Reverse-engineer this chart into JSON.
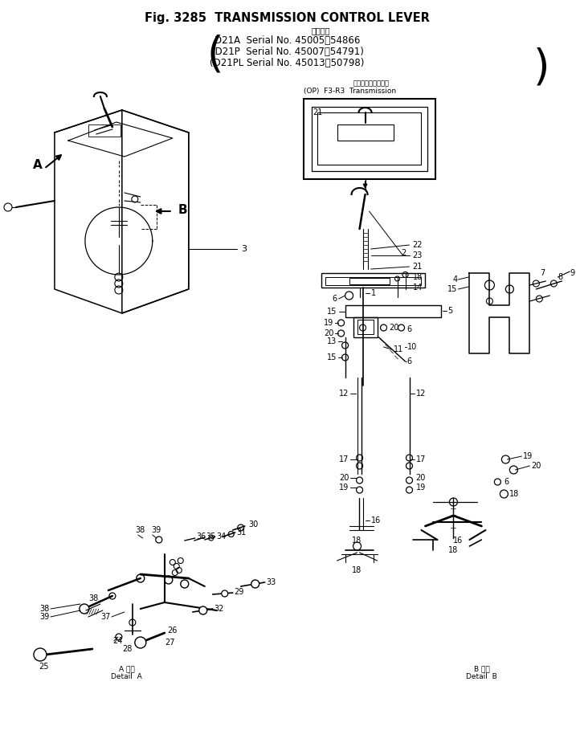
{
  "title": "Fig. 3285  TRANSMISSION CONTROL LEVER",
  "subtitle_jp": "適用号機",
  "serial1": "D21A  Serial No. 45005～54866",
  "serial2": "(D21P  Serial No. 45007～54791)",
  "serial3": "(D21PL Serial No. 45013～50798)",
  "op_label": "(OP)  F3-R3  Transmission",
  "op_jp": "トランスミッション",
  "detail_a": "A 詳細\nDetail  A",
  "detail_b": "B 詳細\nDetail  B",
  "bg": "#ffffff",
  "fig_w": 7.17,
  "fig_h": 9.4,
  "dpi": 100
}
